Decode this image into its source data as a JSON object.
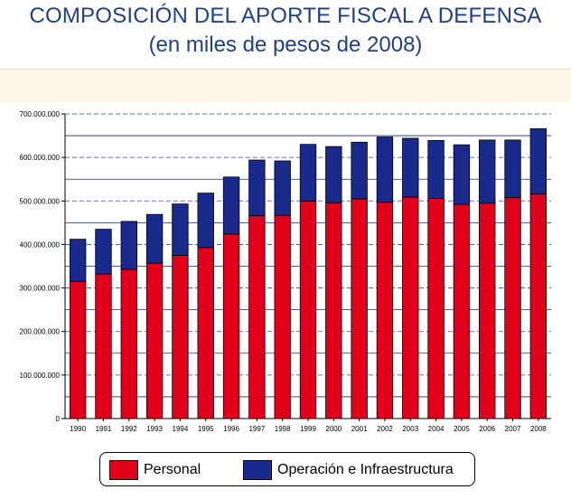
{
  "header": {
    "title": "COMPOSICIÓN DEL APORTE FISCAL A DEFENSA",
    "subtitle": "(en miles de pesos de 2008)"
  },
  "colors": {
    "personal": "#e3001b",
    "operacion": "#1a2a8c",
    "title": "#1f3f8a"
  },
  "chart_data": {
    "type": "bar",
    "stacked": true,
    "categories": [
      "1990",
      "1991",
      "1992",
      "1993",
      "1994",
      "1995",
      "1996",
      "1997",
      "1998",
      "1999",
      "2000",
      "2001",
      "2002",
      "2003",
      "2004",
      "2005",
      "2006",
      "2007",
      "2008"
    ],
    "series": [
      {
        "name": "Personal",
        "values": [
          315000000,
          332000000,
          343000000,
          357000000,
          375000000,
          393000000,
          424000000,
          466000000,
          467000000,
          500000000,
          496000000,
          505000000,
          497000000,
          509000000,
          506000000,
          492000000,
          495000000,
          508000000,
          516000000
        ]
      },
      {
        "name": "Operación e Infraestructura",
        "values": [
          97000000,
          103000000,
          110000000,
          112000000,
          118000000,
          125000000,
          131000000,
          128000000,
          125000000,
          130000000,
          129000000,
          130000000,
          150000000,
          135000000,
          133000000,
          137000000,
          145000000,
          132000000,
          150000000
        ]
      }
    ],
    "yticks": [
      "0",
      "100.000.000",
      "200.000.000",
      "300.000.000",
      "400.000.000",
      "500.000.000",
      "600.000.000",
      "700.000.000"
    ],
    "ylim": [
      0,
      700000000
    ],
    "grid": true,
    "legend_position": "bottom"
  }
}
